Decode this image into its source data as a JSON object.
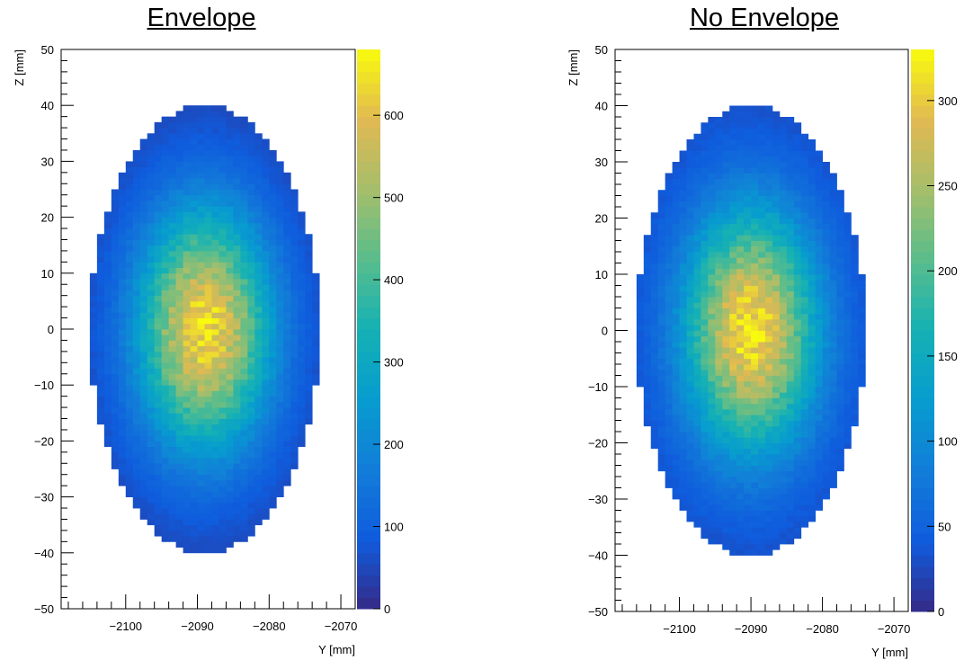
{
  "chart_data": [
    {
      "type": "heatmap",
      "title": "Envelope",
      "xlabel": "Y [mm]",
      "ylabel": "Z [mm]",
      "xlim": [
        -2109,
        -2068
      ],
      "ylim": [
        -50,
        50
      ],
      "x_ticks": [
        -2100,
        -2090,
        -2080,
        -2070
      ],
      "y_ticks": [
        -50,
        -40,
        -30,
        -20,
        -10,
        0,
        10,
        20,
        30,
        40,
        50
      ],
      "x_tick_labels": [
        "−2100",
        "−2090",
        "−2080",
        "−2070"
      ],
      "y_tick_labels": [
        "−50",
        "−40",
        "−30",
        "−20",
        "−10",
        "0",
        "10",
        "20",
        "30",
        "40",
        "50"
      ],
      "color_scale": {
        "min": 0,
        "max": 680,
        "ticks": [
          0,
          100,
          200,
          300,
          400,
          500,
          600
        ]
      },
      "distribution": {
        "shape": "ellipse",
        "center": [
          -2089,
          0
        ],
        "semi_axis_y_mm": 16,
        "semi_axis_z_mm": 40,
        "peak_value": 640,
        "edge_value": 40,
        "bin_size_mm": 1
      },
      "grid": false,
      "colormap": "kBird"
    },
    {
      "type": "heatmap",
      "title": "No Envelope",
      "xlabel": "Y [mm]",
      "ylabel": "Z [mm]",
      "xlim": [
        -2109,
        -2068
      ],
      "ylim": [
        -50,
        50
      ],
      "x_ticks": [
        -2100,
        -2090,
        -2080,
        -2070
      ],
      "y_ticks": [
        -50,
        -40,
        -30,
        -20,
        -10,
        0,
        10,
        20,
        30,
        40,
        50
      ],
      "x_tick_labels": [
        "−2100",
        "−2090",
        "−2080",
        "−2070"
      ],
      "y_tick_labels": [
        "−50",
        "−40",
        "−30",
        "−20",
        "−10",
        "0",
        "10",
        "20",
        "30",
        "40",
        "50"
      ],
      "color_scale": {
        "min": 0,
        "max": 330,
        "ticks": [
          0,
          50,
          100,
          150,
          200,
          250,
          300
        ]
      },
      "distribution": {
        "shape": "ellipse",
        "center": [
          -2090,
          0
        ],
        "semi_axis_y_mm": 16,
        "semi_axis_z_mm": 40,
        "peak_value": 315,
        "edge_value": 25,
        "bin_size_mm": 1
      },
      "grid": false,
      "colormap": "kBird"
    }
  ]
}
